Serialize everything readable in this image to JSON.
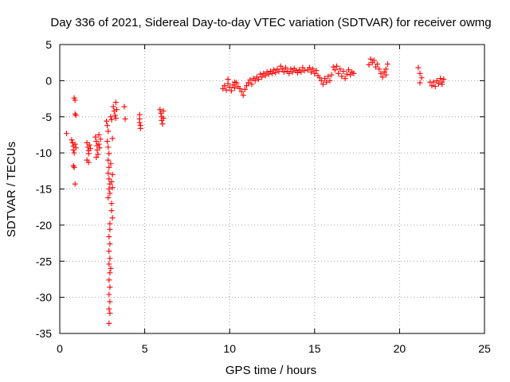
{
  "chart_data": {
    "type": "scatter",
    "title": "Day 336 of 2021, Sidereal Day-to-day VTEC variation (SDTVAR) for receiver owmg",
    "xlabel": "GPS time / hours",
    "ylabel": "SDTVAR / TECUs",
    "xlim": [
      0,
      25
    ],
    "ylim": [
      -35,
      5
    ],
    "xticks": [
      0,
      5,
      10,
      15,
      20,
      25
    ],
    "yticks": [
      5,
      0,
      -5,
      -10,
      -15,
      -20,
      -25,
      -30,
      -35
    ],
    "xtick_labels": [
      "0",
      "5",
      "10",
      "15",
      "20",
      "25"
    ],
    "ytick_labels": [
      "5",
      "0",
      "-5",
      "-10",
      "-15",
      "-20",
      "-25",
      "-30",
      "-35"
    ],
    "grid": true,
    "marker": "+",
    "color": "#ff0000",
    "series": [
      {
        "name": "owmg",
        "points": [
          [
            0.4,
            -7.3
          ],
          [
            0.7,
            -8.2
          ],
          [
            0.75,
            -8.6
          ],
          [
            0.8,
            -9.1
          ],
          [
            0.8,
            -9.6
          ],
          [
            0.85,
            -10.0
          ],
          [
            0.9,
            -8.8
          ],
          [
            0.95,
            -9.3
          ],
          [
            0.8,
            -11.8
          ],
          [
            0.85,
            -12.0
          ],
          [
            0.9,
            -14.3
          ],
          [
            0.85,
            -2.4
          ],
          [
            0.9,
            -2.7
          ],
          [
            0.9,
            -4.6
          ],
          [
            0.95,
            -4.8
          ],
          [
            1.6,
            -8.6
          ],
          [
            1.65,
            -9.2
          ],
          [
            1.7,
            -9.7
          ],
          [
            1.7,
            -10.1
          ],
          [
            1.75,
            -8.9
          ],
          [
            1.8,
            -9.4
          ],
          [
            1.6,
            -11.0
          ],
          [
            1.7,
            -11.3
          ],
          [
            2.1,
            -7.8
          ],
          [
            2.15,
            -8.4
          ],
          [
            2.2,
            -9.0
          ],
          [
            2.2,
            -9.6
          ],
          [
            2.25,
            -10.2
          ],
          [
            2.3,
            -7.5
          ],
          [
            2.3,
            -8.8
          ],
          [
            2.35,
            -9.3
          ],
          [
            2.4,
            -8.1
          ],
          [
            2.15,
            -10.6
          ],
          [
            2.75,
            -5.6
          ],
          [
            2.8,
            -6.2
          ],
          [
            2.85,
            -7.0
          ],
          [
            2.8,
            -8.4
          ],
          [
            2.85,
            -9.2
          ],
          [
            2.9,
            -10.1
          ],
          [
            2.85,
            -11.0
          ],
          [
            2.9,
            -12.0
          ],
          [
            2.85,
            -12.8
          ],
          [
            2.9,
            -13.6
          ],
          [
            2.95,
            -14.3
          ],
          [
            2.9,
            -15.0
          ],
          [
            2.95,
            -15.6
          ],
          [
            2.85,
            -16.2
          ],
          [
            2.95,
            -19.8
          ],
          [
            2.95,
            -20.6
          ],
          [
            2.9,
            -21.6
          ],
          [
            2.95,
            -22.6
          ],
          [
            2.9,
            -23.6
          ],
          [
            2.95,
            -24.6
          ],
          [
            2.9,
            -25.4
          ],
          [
            3.0,
            -26.0
          ],
          [
            2.95,
            -26.6
          ],
          [
            2.9,
            -27.6
          ],
          [
            2.95,
            -28.6
          ],
          [
            2.9,
            -29.6
          ],
          [
            2.95,
            -30.6
          ],
          [
            2.9,
            -31.6
          ],
          [
            2.95,
            -32.2
          ],
          [
            2.9,
            -33.6
          ],
          [
            3.0,
            -5.0
          ],
          [
            3.05,
            -5.4
          ],
          [
            3.1,
            -8.0
          ],
          [
            3.0,
            -11.5
          ],
          [
            3.1,
            -13.0
          ],
          [
            3.05,
            -14.0
          ],
          [
            3.1,
            -14.8
          ],
          [
            3.05,
            -17.0
          ],
          [
            3.05,
            -18.0
          ],
          [
            3.1,
            -19.0
          ],
          [
            3.15,
            -3.6
          ],
          [
            3.2,
            -4.2
          ],
          [
            3.25,
            -4.8
          ],
          [
            3.3,
            -5.2
          ],
          [
            3.3,
            -3.0
          ],
          [
            3.35,
            -4.0
          ],
          [
            3.8,
            -3.6
          ],
          [
            3.85,
            -5.3
          ],
          [
            4.7,
            -4.7
          ],
          [
            4.7,
            -5.3
          ],
          [
            4.7,
            -5.8
          ],
          [
            4.75,
            -6.2
          ],
          [
            4.75,
            -6.6
          ],
          [
            5.9,
            -4.0
          ],
          [
            5.95,
            -4.5
          ],
          [
            6.0,
            -5.0
          ],
          [
            6.0,
            -5.5
          ],
          [
            6.05,
            -6.0
          ],
          [
            6.1,
            -4.2
          ],
          [
            6.1,
            -5.2
          ],
          [
            9.6,
            -1.1
          ],
          [
            9.7,
            -0.7
          ],
          [
            9.8,
            -1.3
          ],
          [
            9.9,
            -0.4
          ],
          [
            10.0,
            -0.9
          ],
          [
            10.1,
            -1.4
          ],
          [
            10.2,
            -0.6
          ],
          [
            10.3,
            -1.0
          ],
          [
            10.4,
            -0.3
          ],
          [
            10.5,
            -0.8
          ],
          [
            10.6,
            -1.1
          ],
          [
            9.9,
            0.2
          ],
          [
            10.3,
            -0.2
          ],
          [
            10.7,
            -1.5
          ],
          [
            10.8,
            -2.0
          ],
          [
            10.9,
            -1.2
          ],
          [
            11.0,
            -0.7
          ],
          [
            11.1,
            -0.3
          ],
          [
            11.2,
            0.1
          ],
          [
            11.3,
            -0.5
          ],
          [
            11.4,
            0.3
          ],
          [
            11.5,
            0.0
          ],
          [
            11.6,
            0.5
          ],
          [
            11.7,
            0.2
          ],
          [
            11.8,
            0.9
          ],
          [
            11.9,
            0.5
          ],
          [
            12.0,
            1.0
          ],
          [
            12.1,
            0.7
          ],
          [
            12.2,
            1.2
          ],
          [
            12.3,
            0.9
          ],
          [
            12.4,
            1.3
          ],
          [
            12.5,
            1.0
          ],
          [
            12.6,
            1.5
          ],
          [
            12.7,
            1.1
          ],
          [
            12.8,
            1.6
          ],
          [
            12.9,
            1.3
          ],
          [
            13.0,
            2.0
          ],
          [
            13.1,
            1.6
          ],
          [
            13.2,
            1.2
          ],
          [
            13.3,
            1.8
          ],
          [
            13.4,
            1.3
          ],
          [
            13.5,
            1.0
          ],
          [
            13.6,
            1.6
          ],
          [
            13.7,
            1.2
          ],
          [
            13.8,
            1.7
          ],
          [
            13.9,
            1.4
          ],
          [
            14.0,
            1.1
          ],
          [
            14.1,
            1.5
          ],
          [
            14.2,
            1.2
          ],
          [
            14.3,
            1.8
          ],
          [
            14.4,
            1.4
          ],
          [
            14.6,
            1.5
          ],
          [
            14.7,
            1.8
          ],
          [
            14.8,
            1.2
          ],
          [
            14.9,
            1.6
          ],
          [
            15.0,
            1.0
          ],
          [
            15.1,
            1.4
          ],
          [
            15.2,
            0.7
          ],
          [
            15.3,
            0.4
          ],
          [
            15.4,
            0.0
          ],
          [
            15.5,
            -0.5
          ],
          [
            15.6,
            0.3
          ],
          [
            15.7,
            -0.2
          ],
          [
            15.8,
            0.6
          ],
          [
            15.9,
            0.0
          ],
          [
            16.0,
            0.8
          ],
          [
            16.1,
            1.9
          ],
          [
            16.2,
            1.5
          ],
          [
            16.3,
            2.0
          ],
          [
            16.4,
            1.0
          ],
          [
            16.5,
            1.6
          ],
          [
            16.6,
            0.6
          ],
          [
            16.7,
            1.3
          ],
          [
            16.8,
            0.3
          ],
          [
            16.9,
            0.9
          ],
          [
            17.0,
            1.5
          ],
          [
            17.1,
            0.8
          ],
          [
            17.2,
            1.2
          ],
          [
            17.3,
            1.0
          ],
          [
            18.2,
            2.2
          ],
          [
            18.3,
            3.0
          ],
          [
            18.4,
            2.5
          ],
          [
            18.5,
            2.8
          ],
          [
            18.6,
            1.9
          ],
          [
            18.7,
            2.3
          ],
          [
            18.8,
            1.6
          ],
          [
            18.9,
            1.0
          ],
          [
            19.0,
            0.5
          ],
          [
            19.1,
            1.2
          ],
          [
            19.2,
            1.6
          ],
          [
            19.3,
            2.3
          ],
          [
            19.2,
            0.8
          ],
          [
            21.1,
            1.8
          ],
          [
            21.2,
            1.0
          ],
          [
            21.3,
            0.4
          ],
          [
            21.2,
            -0.3
          ],
          [
            21.8,
            -0.2
          ],
          [
            21.9,
            -0.7
          ],
          [
            22.0,
            -0.2
          ],
          [
            22.1,
            -0.8
          ],
          [
            22.2,
            0.0
          ],
          [
            22.3,
            -0.4
          ],
          [
            22.4,
            0.3
          ],
          [
            22.5,
            -0.2
          ],
          [
            22.6,
            0.2
          ],
          [
            22.5,
            -0.5
          ]
        ]
      }
    ]
  }
}
